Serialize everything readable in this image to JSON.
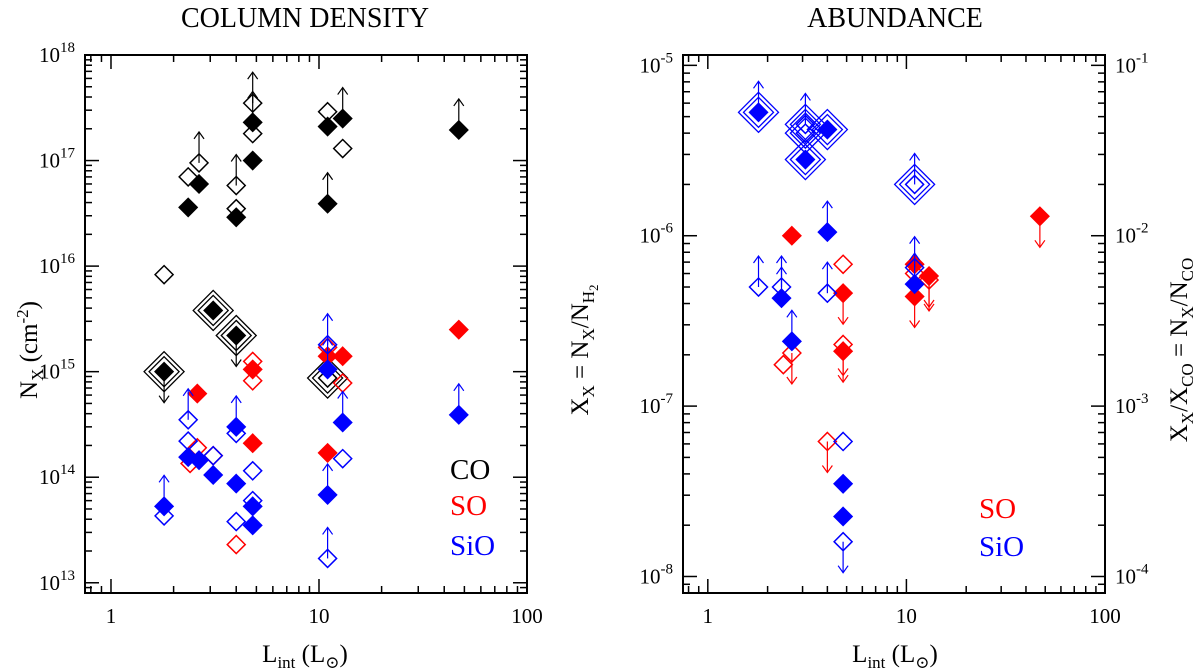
{
  "colors": {
    "CO": "#000000",
    "SO": "#ff0000",
    "SiO": "#0000ff"
  },
  "chart_data": [
    {
      "type": "scatter",
      "title": "COLUMN DENSITY",
      "xlabel": {
        "main": "L",
        "sub": "int",
        "unit_open": " (L",
        "unit_sym": "⊙",
        "unit_close": ")"
      },
      "ylabel": {
        "main": "N",
        "sub": "X",
        "unit": " (cm",
        "sup": "-2",
        "close": ")"
      },
      "xscale": "log",
      "yscale": "log",
      "xlim": [
        0.75,
        100
      ],
      "ylim": [
        8000000000000.0,
        1e+18
      ],
      "xticks": [
        {
          "v": 1,
          "label": "1"
        },
        {
          "v": 10,
          "label": "10"
        },
        {
          "v": 100,
          "label": "100"
        }
      ],
      "yticks": [
        {
          "v": 10000000000000.0,
          "base": "10",
          "exp": "13"
        },
        {
          "v": 100000000000000.0,
          "base": "10",
          "exp": "14"
        },
        {
          "v": 1000000000000000.0,
          "base": "10",
          "exp": "15"
        },
        {
          "v": 1e+16,
          "base": "10",
          "exp": "16"
        },
        {
          "v": 1e+17,
          "base": "10",
          "exp": "17"
        },
        {
          "v": 1e+18,
          "base": "10",
          "exp": "18"
        }
      ],
      "legend": {
        "position": "bottom-right",
        "entries": [
          "CO",
          "SO",
          "SiO"
        ]
      },
      "series": [
        {
          "name": "CO",
          "points": [
            {
              "x": 1.8,
              "y": 8300000000000000.0,
              "filled": false,
              "size": "small"
            },
            {
              "x": 2.35,
              "y": 7e+16,
              "filled": false,
              "size": "small"
            },
            {
              "x": 2.35,
              "y": 3.6e+16,
              "filled": true,
              "size": "small"
            },
            {
              "x": 2.65,
              "y": 9.5e+16,
              "filled": false,
              "size": "small",
              "limit": "up"
            },
            {
              "x": 2.65,
              "y": 6e+16,
              "filled": true,
              "size": "small"
            },
            {
              "x": 4.0,
              "y": 5.8e+16,
              "filled": false,
              "size": "small",
              "limit": "up"
            },
            {
              "x": 4.0,
              "y": 3.5e+16,
              "filled": false,
              "size": "small"
            },
            {
              "x": 4.0,
              "y": 2.9e+16,
              "filled": true,
              "size": "small"
            },
            {
              "x": 4.8,
              "y": 3.5e+17,
              "filled": false,
              "size": "small",
              "limit": "up"
            },
            {
              "x": 4.8,
              "y": 2.3e+17,
              "filled": true,
              "size": "small",
              "limit": "up"
            },
            {
              "x": 4.8,
              "y": 1.8e+17,
              "filled": false,
              "size": "small"
            },
            {
              "x": 4.8,
              "y": 1e+17,
              "filled": true,
              "size": "small"
            },
            {
              "x": 11.0,
              "y": 2.9e+17,
              "filled": false,
              "size": "small"
            },
            {
              "x": 11.0,
              "y": 2.1e+17,
              "filled": true,
              "size": "small"
            },
            {
              "x": 11.0,
              "y": 3.9e+16,
              "filled": true,
              "size": "small",
              "limit": "up"
            },
            {
              "x": 13.0,
              "y": 2.5e+17,
              "filled": true,
              "size": "small",
              "limit": "up"
            },
            {
              "x": 13.0,
              "y": 1.3e+17,
              "filled": false,
              "size": "small"
            },
            {
              "x": 47.0,
              "y": 1.95e+17,
              "filled": true,
              "size": "small",
              "limit": "up"
            },
            {
              "x": 1.8,
              "y": 1000000000000000.0,
              "filled": true,
              "size": "large",
              "limit": "down"
            },
            {
              "x": 3.1,
              "y": 3800000000000000.0,
              "filled": true,
              "size": "large"
            },
            {
              "x": 4.0,
              "y": 2200000000000000.0,
              "filled": true,
              "size": "large",
              "limit": "down"
            },
            {
              "x": 11.0,
              "y": 870000000000000.0,
              "filled": false,
              "size": "large"
            }
          ]
        },
        {
          "name": "SO",
          "points": [
            {
              "x": 2.4,
              "y": 135000000000000.0,
              "filled": false,
              "size": "small"
            },
            {
              "x": 2.6,
              "y": 620000000000000.0,
              "filled": true,
              "size": "small"
            },
            {
              "x": 2.6,
              "y": 190000000000000.0,
              "filled": false,
              "size": "small"
            },
            {
              "x": 3.1,
              "y": 160000000000000.0,
              "filled": false,
              "size": "small"
            },
            {
              "x": 4.0,
              "y": 23000000000000.0,
              "filled": false,
              "size": "small"
            },
            {
              "x": 4.8,
              "y": 1250000000000000.0,
              "filled": false,
              "size": "small"
            },
            {
              "x": 4.8,
              "y": 1050000000000000.0,
              "filled": true,
              "size": "small"
            },
            {
              "x": 4.8,
              "y": 820000000000000.0,
              "filled": false,
              "size": "small"
            },
            {
              "x": 4.8,
              "y": 210000000000000.0,
              "filled": true,
              "size": "small"
            },
            {
              "x": 11.0,
              "y": 1700000000000000.0,
              "filled": false,
              "size": "small"
            },
            {
              "x": 11.0,
              "y": 1400000000000000.0,
              "filled": true,
              "size": "small"
            },
            {
              "x": 11.0,
              "y": 170000000000000.0,
              "filled": true,
              "size": "small"
            },
            {
              "x": 13.0,
              "y": 1400000000000000.0,
              "filled": true,
              "size": "small"
            },
            {
              "x": 13.0,
              "y": 780000000000000.0,
              "filled": false,
              "size": "small"
            },
            {
              "x": 47.0,
              "y": 2500000000000000.0,
              "filled": true,
              "size": "small"
            }
          ]
        },
        {
          "name": "SiO",
          "points": [
            {
              "x": 1.8,
              "y": 53000000000000.0,
              "filled": true,
              "size": "small",
              "limit": "up"
            },
            {
              "x": 1.8,
              "y": 43000000000000.0,
              "filled": false,
              "size": "small"
            },
            {
              "x": 2.35,
              "y": 350000000000000.0,
              "filled": false,
              "size": "small",
              "limit": "up"
            },
            {
              "x": 2.35,
              "y": 220000000000000.0,
              "filled": false,
              "size": "small"
            },
            {
              "x": 2.35,
              "y": 155000000000000.0,
              "filled": true,
              "size": "small"
            },
            {
              "x": 2.65,
              "y": 145000000000000.0,
              "filled": true,
              "size": "small"
            },
            {
              "x": 3.1,
              "y": 160000000000000.0,
              "filled": false,
              "size": "small"
            },
            {
              "x": 3.1,
              "y": 105000000000000.0,
              "filled": true,
              "size": "small"
            },
            {
              "x": 4.0,
              "y": 300000000000000.0,
              "filled": true,
              "size": "small",
              "limit": "up"
            },
            {
              "x": 4.0,
              "y": 260000000000000.0,
              "filled": false,
              "size": "small"
            },
            {
              "x": 4.0,
              "y": 87000000000000.0,
              "filled": true,
              "size": "small"
            },
            {
              "x": 4.0,
              "y": 38000000000000.0,
              "filled": false,
              "size": "small"
            },
            {
              "x": 4.8,
              "y": 115000000000000.0,
              "filled": false,
              "size": "small"
            },
            {
              "x": 4.8,
              "y": 60000000000000.0,
              "filled": false,
              "size": "small"
            },
            {
              "x": 4.8,
              "y": 53000000000000.0,
              "filled": true,
              "size": "small"
            },
            {
              "x": 4.8,
              "y": 35000000000000.0,
              "filled": true,
              "size": "small"
            },
            {
              "x": 11.0,
              "y": 1800000000000000.0,
              "filled": false,
              "size": "small",
              "limit": "up"
            },
            {
              "x": 11.0,
              "y": 1050000000000000.0,
              "filled": true,
              "size": "small",
              "limit": "up"
            },
            {
              "x": 11.0,
              "y": 68000000000000.0,
              "filled": true,
              "size": "small",
              "limit": "up"
            },
            {
              "x": 11.0,
              "y": 17000000000000.0,
              "filled": false,
              "size": "small",
              "limit": "up"
            },
            {
              "x": 13.0,
              "y": 330000000000000.0,
              "filled": true,
              "size": "small",
              "limit": "up"
            },
            {
              "x": 13.0,
              "y": 150000000000000.0,
              "filled": false,
              "size": "small"
            },
            {
              "x": 47.0,
              "y": 390000000000000.0,
              "filled": true,
              "size": "small",
              "limit": "up"
            }
          ]
        }
      ]
    },
    {
      "type": "scatter",
      "title": "ABUNDANCE",
      "xlabel": {
        "main": "L",
        "sub": "int",
        "unit_open": " (L",
        "unit_sym": "⊙",
        "unit_close": ")"
      },
      "ylabel": {
        "main": "X",
        "sub": "X",
        "eq": " = N",
        "sub2": "X",
        "slash": "/N",
        "sub3": "H",
        "sub4": "2"
      },
      "y2label": {
        "main": "X",
        "sub": "X",
        "slash": "/X",
        "sub2": "CO",
        "eq": " = N",
        "sub3": "X",
        "slash2": "/N",
        "sub4": "CO"
      },
      "xscale": "log",
      "yscale": "log",
      "xlim": [
        0.75,
        100
      ],
      "ylim": [
        8e-09,
        1.15e-05
      ],
      "xticks": [
        {
          "v": 1,
          "label": "1"
        },
        {
          "v": 10,
          "label": "10"
        },
        {
          "v": 100,
          "label": "100"
        }
      ],
      "yticks": [
        {
          "v": 1e-08,
          "base": "10",
          "exp": "-8"
        },
        {
          "v": 1e-07,
          "base": "10",
          "exp": "-7"
        },
        {
          "v": 1e-06,
          "base": "10",
          "exp": "-6"
        },
        {
          "v": 1e-05,
          "base": "10",
          "exp": "-5"
        }
      ],
      "y2ticks": [
        {
          "v": 1e-08,
          "base": "10",
          "exp": "-4"
        },
        {
          "v": 1e-07,
          "label": "10",
          "exp": "-3",
          "base": "10"
        },
        {
          "v": 1e-06,
          "base": "10",
          "exp": "-2"
        },
        {
          "v": 1e-05,
          "label": "10-1",
          "plain": "10",
          "exp": "-1",
          "base": "10"
        }
      ],
      "legend": {
        "position": "bottom-right",
        "entries": [
          "SO",
          "SiO"
        ]
      },
      "series": [
        {
          "name": "SO",
          "points": [
            {
              "x": 2.4,
              "y": 1.75e-07,
              "filled": false,
              "size": "small"
            },
            {
              "x": 2.65,
              "y": 1e-06,
              "filled": true,
              "size": "small"
            },
            {
              "x": 2.65,
              "y": 2.05e-07,
              "filled": false,
              "size": "small",
              "limit": "down"
            },
            {
              "x": 4.0,
              "y": 6.2e-08,
              "filled": false,
              "size": "small",
              "limit": "down"
            },
            {
              "x": 4.8,
              "y": 6.8e-07,
              "filled": false,
              "size": "small"
            },
            {
              "x": 4.8,
              "y": 4.6e-07,
              "filled": true,
              "size": "small",
              "limit": "down"
            },
            {
              "x": 4.8,
              "y": 2.3e-07,
              "filled": false,
              "size": "small",
              "limit": "down"
            },
            {
              "x": 4.8,
              "y": 2.1e-07,
              "filled": true,
              "size": "small",
              "limit": "down"
            },
            {
              "x": 11.0,
              "y": 6.8e-07,
              "filled": true,
              "size": "small"
            },
            {
              "x": 11.0,
              "y": 6e-07,
              "filled": false,
              "size": "small"
            },
            {
              "x": 11.0,
              "y": 4.4e-07,
              "filled": true,
              "size": "small",
              "limit": "down"
            },
            {
              "x": 13.0,
              "y": 5.8e-07,
              "filled": true,
              "size": "small",
              "limit": "down"
            },
            {
              "x": 13.0,
              "y": 5.5e-07,
              "filled": false,
              "size": "small",
              "limit": "down"
            },
            {
              "x": 47.0,
              "y": 1.3e-06,
              "filled": true,
              "size": "small",
              "limit": "down"
            }
          ]
        },
        {
          "name": "SiO",
          "points": [
            {
              "x": 1.8,
              "y": 5.3e-06,
              "filled": true,
              "size": "large",
              "limit": "up"
            },
            {
              "x": 1.8,
              "y": 5e-07,
              "filled": false,
              "size": "small",
              "limit": "up"
            },
            {
              "x": 2.35,
              "y": 5e-07,
              "filled": false,
              "size": "small",
              "limit": "up"
            },
            {
              "x": 2.35,
              "y": 4.3e-07,
              "filled": true,
              "size": "small",
              "limit": "up"
            },
            {
              "x": 2.65,
              "y": 2.4e-07,
              "filled": true,
              "size": "small",
              "limit": "up"
            },
            {
              "x": 3.1,
              "y": 4.5e-06,
              "filled": false,
              "size": "large",
              "limit": "up"
            },
            {
              "x": 3.1,
              "y": 4e-06,
              "filled": false,
              "size": "large"
            },
            {
              "x": 3.1,
              "y": 2.8e-06,
              "filled": true,
              "size": "large"
            },
            {
              "x": 4.0,
              "y": 4.2e-06,
              "filled": true,
              "size": "large"
            },
            {
              "x": 4.0,
              "y": 1.05e-06,
              "filled": true,
              "size": "small",
              "limit": "up"
            },
            {
              "x": 4.0,
              "y": 4.6e-07,
              "filled": false,
              "size": "small",
              "limit": "up"
            },
            {
              "x": 4.8,
              "y": 6.2e-08,
              "filled": false,
              "size": "small"
            },
            {
              "x": 4.8,
              "y": 3.5e-08,
              "filled": true,
              "size": "small"
            },
            {
              "x": 4.8,
              "y": 2.25e-08,
              "filled": true,
              "size": "small"
            },
            {
              "x": 4.8,
              "y": 1.6e-08,
              "filled": false,
              "size": "small",
              "limit": "down"
            },
            {
              "x": 11.0,
              "y": 2e-06,
              "filled": false,
              "size": "large",
              "limit": "up"
            },
            {
              "x": 11.0,
              "y": 6.5e-07,
              "filled": false,
              "size": "small",
              "limit": "up"
            },
            {
              "x": 11.0,
              "y": 5.2e-07,
              "filled": true,
              "size": "small",
              "limit": "up"
            }
          ]
        }
      ]
    }
  ]
}
